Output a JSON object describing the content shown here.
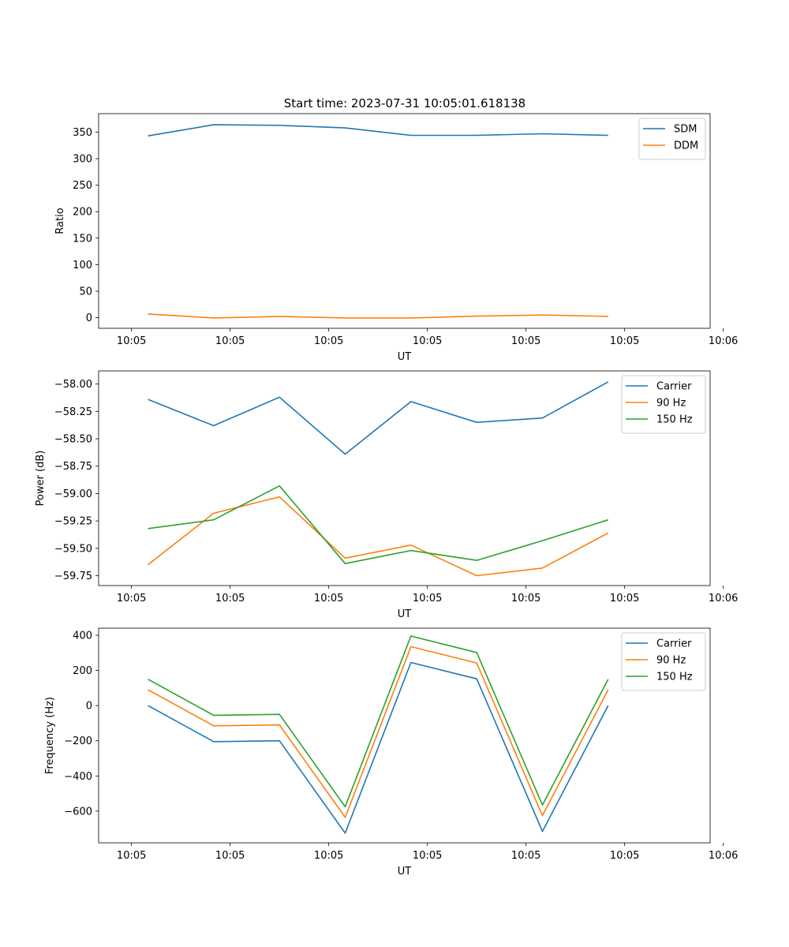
{
  "figure_title": "Start time: 2023-07-31 10:05:01.618138",
  "colors": {
    "blue": "#1f77b4",
    "orange": "#ff7f0e",
    "green": "#2ca02c"
  },
  "chart_data": [
    {
      "type": "line",
      "title": "Start time: 2023-07-31 10:05:01.618138",
      "xlabel": "UT",
      "ylabel": "Ratio",
      "xlim": [
        -0.5,
        8.8
      ],
      "x": [
        0.25,
        1.25,
        2.25,
        3.25,
        4.25,
        5.25,
        6.25,
        7.25
      ],
      "x_ticks": [
        0,
        1.5,
        3,
        4.5,
        6,
        7.5,
        9
      ],
      "x_tick_labels": [
        "10:05",
        "10:05",
        "10:05",
        "10:05",
        "10:05",
        "10:05",
        "10:06"
      ],
      "ylim": [
        -20,
        385
      ],
      "y_ticks": [
        0,
        50,
        100,
        150,
        200,
        250,
        300,
        350
      ],
      "y_tick_labels": [
        "0",
        "50",
        "100",
        "150",
        "200",
        "250",
        "300",
        "350"
      ],
      "legend": "top-right",
      "series": [
        {
          "name": "SDM",
          "color": "#1f77b4",
          "values": [
            343,
            364,
            363,
            358,
            344,
            344,
            347,
            344
          ]
        },
        {
          "name": "DDM",
          "color": "#ff7f0e",
          "values": [
            7,
            -0.5,
            2.5,
            -0.5,
            -0.5,
            3,
            5,
            2.5
          ]
        }
      ]
    },
    {
      "type": "line",
      "title": "",
      "xlabel": "UT",
      "ylabel": "Power (dB)",
      "xlim": [
        -0.5,
        8.8
      ],
      "x": [
        0.25,
        1.25,
        2.25,
        3.25,
        4.25,
        5.25,
        6.25,
        7.25
      ],
      "x_ticks": [
        0,
        1.5,
        3,
        4.5,
        6,
        7.5,
        9
      ],
      "x_tick_labels": [
        "10:05",
        "10:05",
        "10:05",
        "10:05",
        "10:05",
        "10:05",
        "10:06"
      ],
      "ylim": [
        -59.84,
        -57.88
      ],
      "y_ticks": [
        -59.75,
        -59.5,
        -59.25,
        -59.0,
        -58.75,
        -58.5,
        -58.25,
        -58.0
      ],
      "y_tick_labels": [
        "−59.75",
        "−59.50",
        "−59.25",
        "−59.00",
        "−58.75",
        "−58.50",
        "−58.25",
        "−58.00"
      ],
      "legend": "top-right",
      "series": [
        {
          "name": "Carrier",
          "color": "#1f77b4",
          "values": [
            -58.14,
            -58.38,
            -58.12,
            -58.64,
            -58.16,
            -58.35,
            -58.31,
            -57.98
          ]
        },
        {
          "name": "90 Hz",
          "color": "#ff7f0e",
          "values": [
            -59.65,
            -59.18,
            -59.03,
            -59.59,
            -59.47,
            -59.75,
            -59.68,
            -59.36
          ]
        },
        {
          "name": "150 Hz",
          "color": "#2ca02c",
          "values": [
            -59.32,
            -59.24,
            -58.93,
            -59.64,
            -59.52,
            -59.61,
            -59.43,
            -59.24
          ]
        }
      ]
    },
    {
      "type": "line",
      "title": "",
      "xlabel": "UT",
      "ylabel": "Frequency (Hz)",
      "xlim": [
        -0.5,
        8.8
      ],
      "x": [
        0.25,
        1.25,
        2.25,
        3.25,
        4.25,
        5.25,
        6.25,
        7.25
      ],
      "x_ticks": [
        0,
        1.5,
        3,
        4.5,
        6,
        7.5,
        9
      ],
      "x_tick_labels": [
        "10:05",
        "10:05",
        "10:05",
        "10:05",
        "10:05",
        "10:05",
        "10:06"
      ],
      "ylim": [
        -780,
        440
      ],
      "y_ticks": [
        -600,
        -400,
        -200,
        0,
        200,
        400
      ],
      "y_tick_labels": [
        "−600",
        "−400",
        "−200",
        "0",
        "200",
        "400"
      ],
      "legend": "top-right",
      "series": [
        {
          "name": "Carrier",
          "color": "#1f77b4",
          "values": [
            0,
            -205,
            -200,
            -725,
            245,
            152,
            -715,
            0
          ]
        },
        {
          "name": "90 Hz",
          "color": "#ff7f0e",
          "values": [
            90,
            -115,
            -110,
            -635,
            335,
            242,
            -625,
            90
          ]
        },
        {
          "name": "150 Hz",
          "color": "#2ca02c",
          "values": [
            150,
            -55,
            -50,
            -575,
            395,
            302,
            -565,
            150
          ]
        }
      ]
    }
  ]
}
